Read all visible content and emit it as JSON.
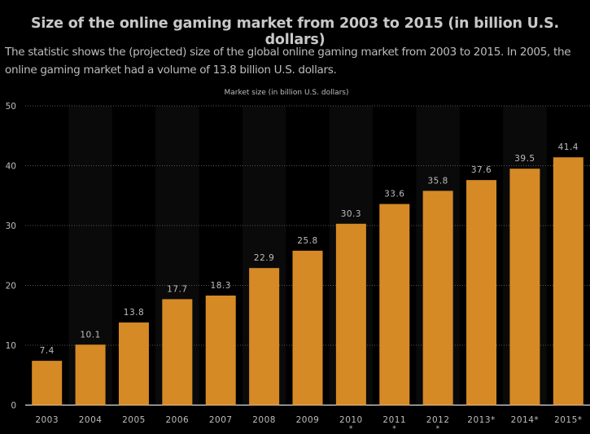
{
  "header": {
    "title": "Size of the online gaming market from 2003 to 2015 (in billion U.S. dollars)",
    "description": "The statistic shows the (projected) size of the global online gaming market from 2003 to 2015. In 2005, the online gaming market had a volume of 13.8 billion U.S. dollars."
  },
  "colors": {
    "bar": "#d68a25",
    "background": "#000000",
    "band": "#0a0a0a",
    "text": "#bdbdbd"
  },
  "chart_data": {
    "type": "bar",
    "title": "Size of the online gaming market from 2003 to 2015 (in billion U.S. dollars)",
    "ylabel": "",
    "xlabel": "",
    "series_label": "Market size (in billion U.S. dollars)",
    "categories": [
      "2003",
      "2004",
      "2005",
      "2006",
      "2007",
      "2008",
      "2009",
      "2010\n*",
      "2011\n*",
      "2012\n*",
      "2013*",
      "2014*",
      "2015*"
    ],
    "values": [
      7.4,
      10.1,
      13.8,
      17.7,
      18.3,
      22.9,
      25.8,
      30.3,
      33.6,
      35.8,
      37.6,
      39.5,
      41.4
    ],
    "value_labels": [
      "7.4",
      "10.1",
      "13.8",
      "17.7",
      "18.3",
      "22.9",
      "25.8",
      "30.3",
      "33.6",
      "35.8",
      "37.6",
      "39.5",
      "41.4"
    ],
    "ylim": [
      0,
      50
    ],
    "yticks": [
      0,
      10,
      20,
      30,
      40,
      50
    ],
    "grid": true,
    "legend": "none"
  }
}
